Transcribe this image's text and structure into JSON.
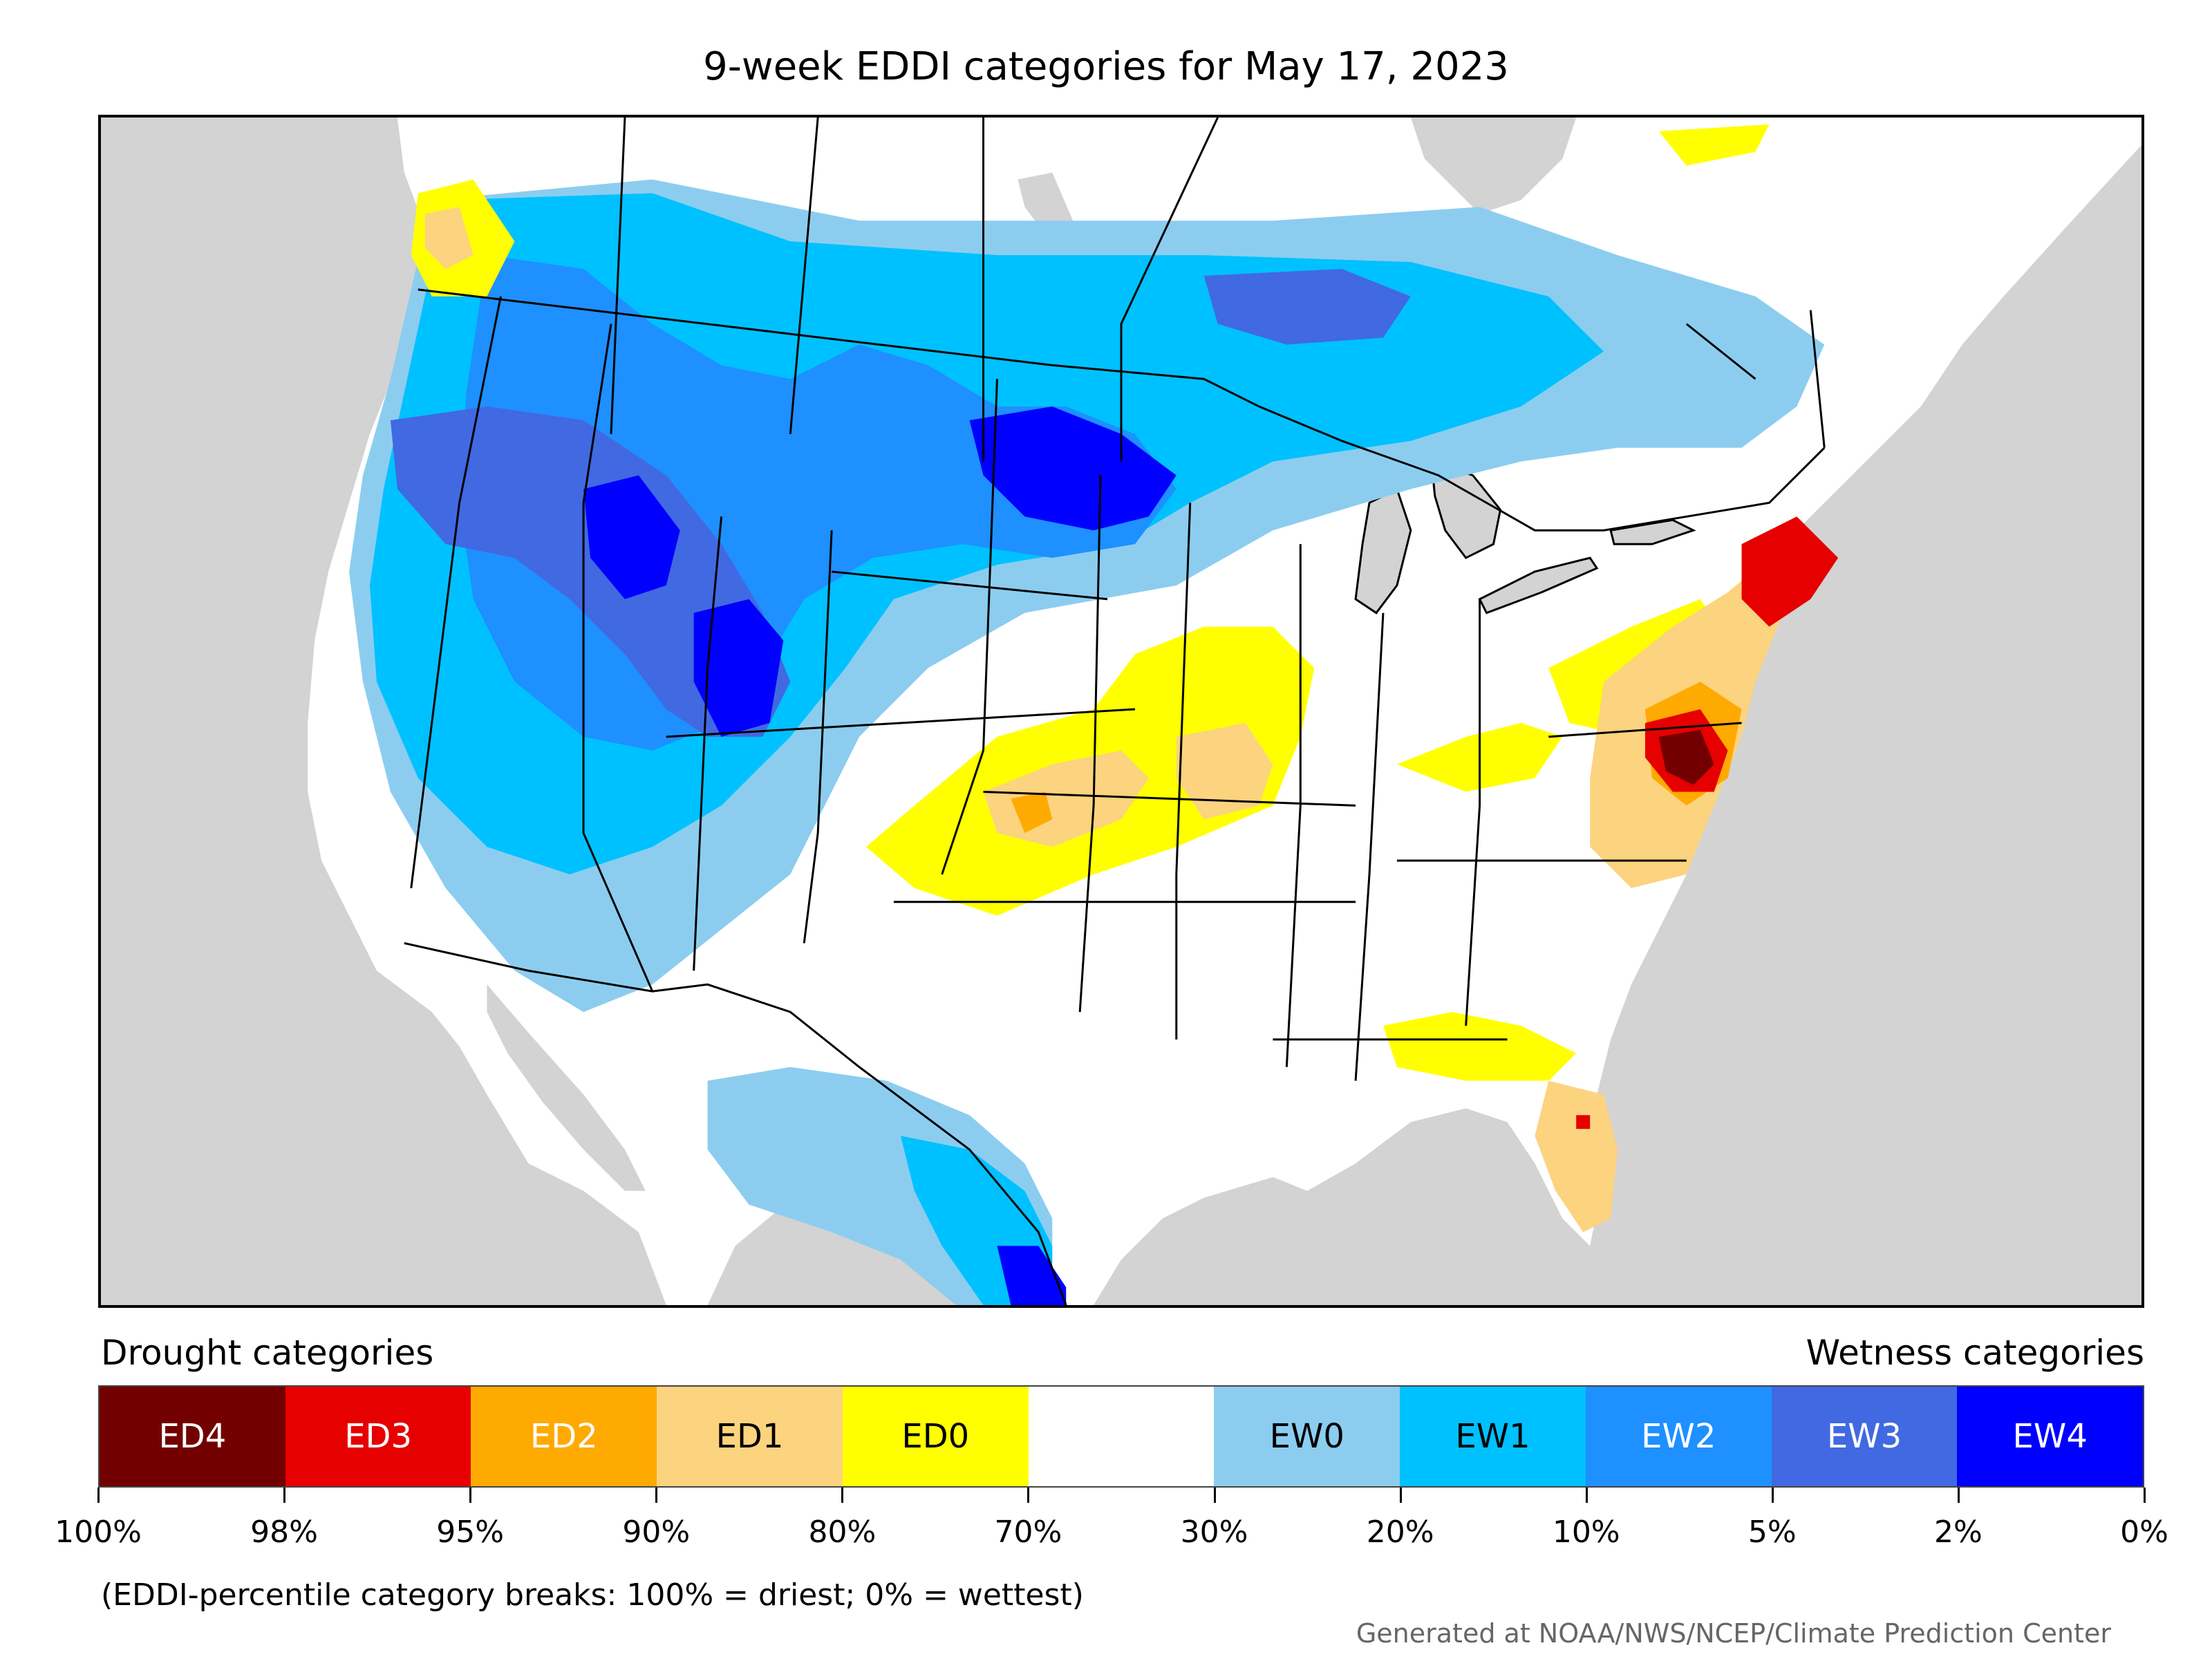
{
  "title": "9-week EDDI categories for May 17, 2023",
  "legend": {
    "drought_heading": "Drought categories",
    "wetness_heading": "Wetness categories",
    "categories": [
      {
        "label": "ED4",
        "color": "#730000",
        "text_color": "#ffffff"
      },
      {
        "label": "ED3",
        "color": "#e60000",
        "text_color": "#ffffff"
      },
      {
        "label": "ED2",
        "color": "#ffaa00",
        "text_color": "#ffffff"
      },
      {
        "label": "ED1",
        "color": "#fcd37f",
        "text_color": "#000000"
      },
      {
        "label": "ED0",
        "color": "#ffff00",
        "text_color": "#000000"
      },
      {
        "label": "",
        "color": "#ffffff",
        "text_color": "#000000"
      },
      {
        "label": "EW0",
        "color": "#8ccdef",
        "text_color": "#000000"
      },
      {
        "label": "EW1",
        "color": "#00c1ff",
        "text_color": "#000000"
      },
      {
        "label": "EW2",
        "color": "#1e90ff",
        "text_color": "#ffffff"
      },
      {
        "label": "EW3",
        "color": "#4169e1",
        "text_color": "#ffffff"
      },
      {
        "label": "EW4",
        "color": "#0000ff",
        "text_color": "#ffffff"
      }
    ],
    "breaks": [
      "100%",
      "98%",
      "95%",
      "90%",
      "80%",
      "70%",
      "30%",
      "20%",
      "10%",
      "5%",
      "2%",
      "0%"
    ]
  },
  "note": "(EDDI-percentile category breaks: 100% = driest; 0% = wettest)",
  "credit": "Generated at NOAA/NWS/NCEP/Climate Prediction Center",
  "map_colors": {
    "background": "#d3d3d3",
    "land": "#ffffff",
    "boundary": "#000000"
  }
}
